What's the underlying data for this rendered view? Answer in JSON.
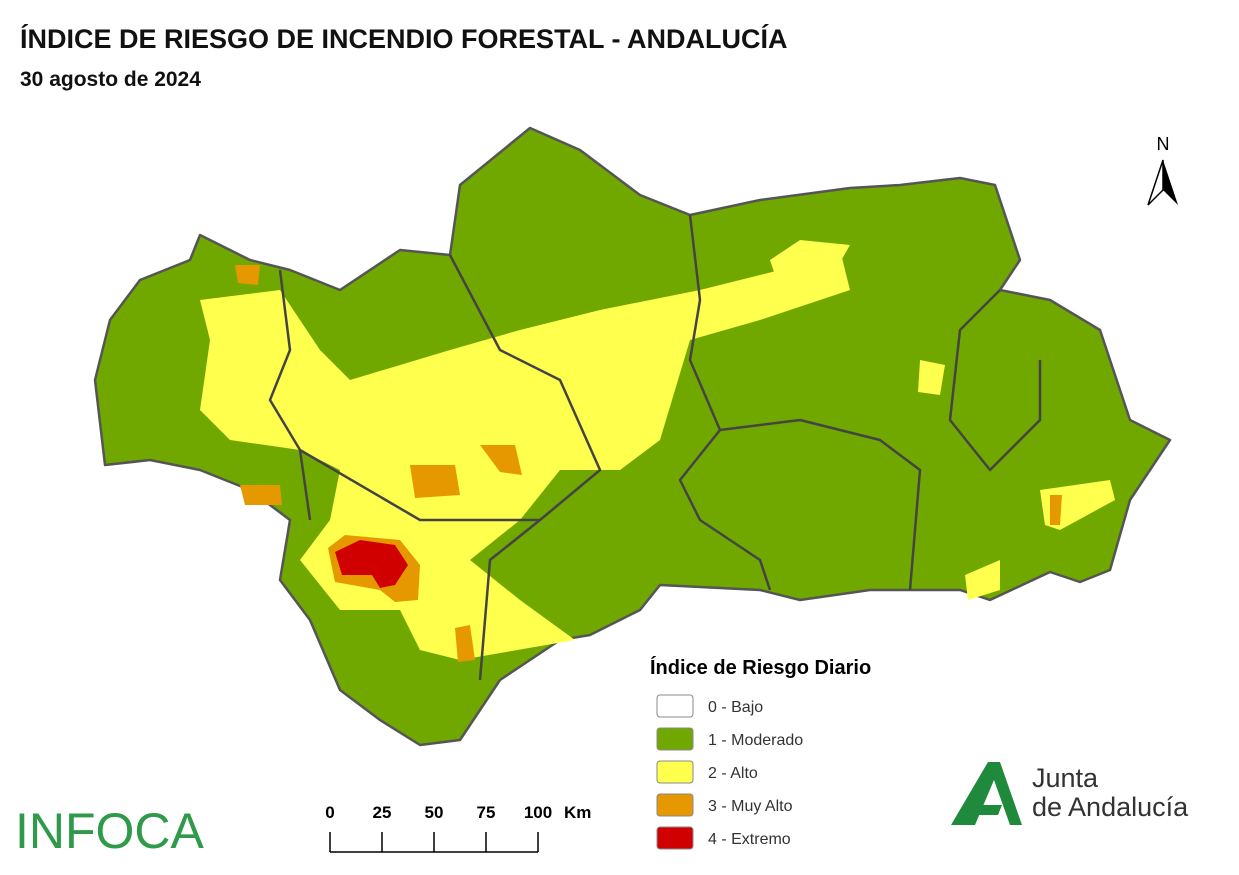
{
  "header": {
    "title": "ÍNDICE DE RIESGO DE INCENDIO FORESTAL - ANDALUCÍA",
    "subtitle": "30 agosto de 2024"
  },
  "north": "N",
  "legend": {
    "title": "Índice de Riesgo Diario",
    "items": [
      {
        "label": "0 - Bajo",
        "color": "#ffffff"
      },
      {
        "label": "1 - Moderado",
        "color": "#70a800"
      },
      {
        "label": "2 - Alto",
        "color": "#ffff4d"
      },
      {
        "label": "3 - Muy Alto",
        "color": "#e69800"
      },
      {
        "label": "4 - Extremo",
        "color": "#d10000"
      }
    ]
  },
  "scale": {
    "ticks": [
      0,
      25,
      50,
      75,
      100
    ],
    "unit": "Km"
  },
  "logos": {
    "infoca": "INFOCA",
    "junta": [
      "Junta",
      "de Andalucía"
    ]
  }
}
